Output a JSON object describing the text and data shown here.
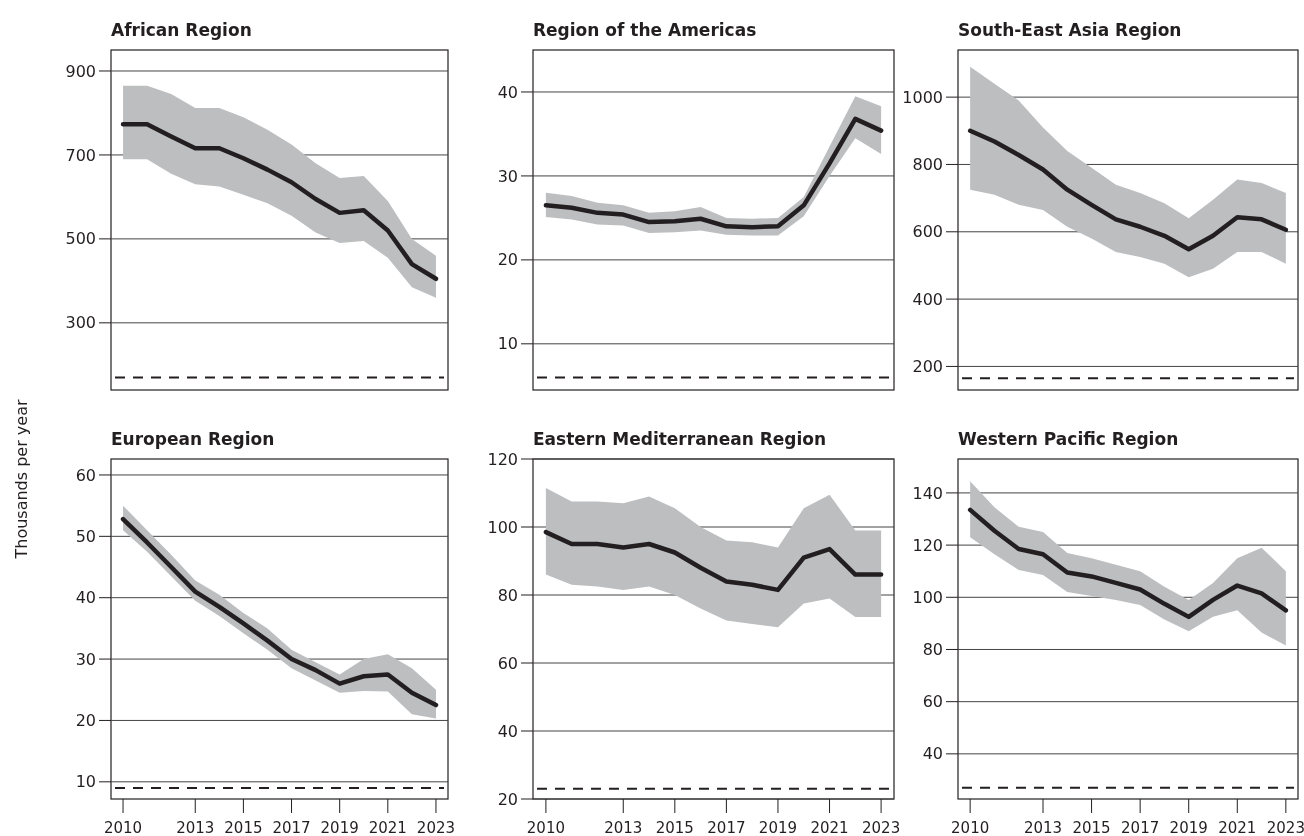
{
  "chart_data": [
    {
      "type": "line",
      "title": "African Region",
      "x": [
        2010,
        2011,
        2012,
        2013,
        2014,
        2015,
        2016,
        2017,
        2018,
        2019,
        2020,
        2021,
        2022,
        2023
      ],
      "xlim": [
        2009.5,
        2023.5
      ],
      "ylim": [
        140,
        950
      ],
      "yticks": [
        300,
        500,
        700,
        900
      ],
      "grid": "y",
      "tick_labels": "y",
      "series": [
        {
          "color": "#231f20",
          "values": [
            773,
            773,
            744,
            716,
            716,
            692,
            665,
            635,
            595,
            562,
            568,
            520,
            440,
            405
          ],
          "upper": [
            865,
            865,
            845,
            812,
            812,
            790,
            760,
            725,
            680,
            645,
            650,
            590,
            500,
            460
          ],
          "lower": [
            690,
            690,
            655,
            630,
            625,
            605,
            585,
            555,
            515,
            490,
            495,
            455,
            385,
            360
          ]
        }
      ],
      "ref_lines": [
        {
          "axis": "y",
          "value": 170,
          "line_style": "dashed",
          "color": "#231f20"
        }
      ]
    },
    {
      "type": "line",
      "title": "Region of the Americas",
      "x": [
        2010,
        2011,
        2012,
        2013,
        2014,
        2015,
        2016,
        2017,
        2018,
        2019,
        2020,
        2021,
        2022,
        2023
      ],
      "xlim": [
        2009.5,
        2023.5
      ],
      "ylim": [
        4.5,
        45
      ],
      "yticks": [
        10,
        20,
        30,
        40
      ],
      "grid": "y",
      "tick_labels": "y",
      "series": [
        {
          "color": "#231f20",
          "values": [
            26.5,
            26.2,
            25.6,
            25.4,
            24.5,
            24.6,
            24.9,
            24.0,
            23.9,
            24.0,
            26.5,
            31.5,
            36.8,
            35.4
          ],
          "upper": [
            28.0,
            27.6,
            26.8,
            26.5,
            25.6,
            25.8,
            26.3,
            25.0,
            24.9,
            25.0,
            27.5,
            33.5,
            39.5,
            38.3
          ],
          "lower": [
            25.1,
            24.8,
            24.2,
            24.1,
            23.2,
            23.3,
            23.5,
            23.0,
            22.9,
            22.9,
            25.2,
            30.0,
            34.5,
            32.6
          ]
        }
      ],
      "ref_lines": [
        {
          "axis": "y",
          "value": 6,
          "line_style": "dashed",
          "color": "#231f20"
        }
      ]
    },
    {
      "type": "line",
      "title": "South-East Asia Region",
      "x": [
        2010,
        2011,
        2012,
        2013,
        2014,
        2015,
        2016,
        2017,
        2018,
        2019,
        2020,
        2021,
        2022,
        2023
      ],
      "xlim": [
        2009.5,
        2023.5
      ],
      "ylim": [
        130,
        1140
      ],
      "yticks": [
        200,
        400,
        600,
        800,
        1000
      ],
      "grid": "y",
      "tick_labels": "y",
      "series": [
        {
          "color": "#231f20",
          "values": [
            900,
            868,
            828,
            785,
            725,
            680,
            637,
            615,
            588,
            548,
            588,
            643,
            637,
            606
          ],
          "upper": [
            1090,
            1040,
            990,
            910,
            840,
            790,
            740,
            715,
            685,
            640,
            695,
            755,
            745,
            715
          ],
          "lower": [
            725,
            710,
            680,
            665,
            615,
            580,
            540,
            525,
            505,
            465,
            490,
            540,
            540,
            505
          ]
        }
      ],
      "ref_lines": [
        {
          "axis": "y",
          "value": 165,
          "line_style": "dashed",
          "color": "#231f20"
        }
      ]
    },
    {
      "type": "line",
      "title": "European Region",
      "ylabel": "Thousands per year",
      "x": [
        2010,
        2011,
        2012,
        2013,
        2014,
        2015,
        2016,
        2017,
        2018,
        2019,
        2020,
        2021,
        2022,
        2023
      ],
      "xlim": [
        2009.5,
        2023.5
      ],
      "xticks": [
        2010,
        2013,
        2015,
        2017,
        2019,
        2021,
        2023
      ],
      "ylim": [
        7.2,
        62.6
      ],
      "yticks": [
        10,
        20,
        30,
        40,
        50,
        60
      ],
      "grid": "y",
      "series": [
        {
          "color": "#231f20",
          "values": [
            52.8,
            49,
            45,
            41,
            38.5,
            35.8,
            33,
            30,
            28.2,
            26,
            27.2,
            27.5,
            24.5,
            22.5
          ],
          "upper": [
            55,
            51,
            47,
            42.8,
            40.5,
            37.5,
            35,
            31.5,
            29.5,
            27.5,
            30,
            30.8,
            28.5,
            25
          ],
          "lower": [
            51,
            47.5,
            43.5,
            39.5,
            37,
            34.2,
            31.5,
            28.5,
            26.5,
            24.5,
            24.8,
            24.7,
            21,
            20.3
          ]
        }
      ],
      "ref_lines": [
        {
          "axis": "y",
          "value": 9,
          "line_style": "dashed",
          "color": "#231f20"
        }
      ]
    },
    {
      "type": "line",
      "title": "Eastern Mediterranean Region",
      "x": [
        2010,
        2011,
        2012,
        2013,
        2014,
        2015,
        2016,
        2017,
        2018,
        2019,
        2020,
        2021,
        2022,
        2023
      ],
      "xlim": [
        2009.5,
        2023.5
      ],
      "xticks": [
        2010,
        2013,
        2015,
        2017,
        2019,
        2021,
        2023
      ],
      "ylim": [
        20,
        120
      ],
      "yticks": [
        20,
        40,
        60,
        80,
        100,
        120
      ],
      "grid": "y",
      "series": [
        {
          "color": "#231f20",
          "values": [
            98.5,
            95,
            95,
            94,
            95,
            92.5,
            88,
            84,
            83,
            81.5,
            91,
            93.5,
            86,
            86
          ],
          "upper": [
            111.5,
            107.5,
            107.5,
            107,
            109,
            105.5,
            100,
            96,
            95.5,
            94,
            105.5,
            109.5,
            99,
            99
          ],
          "lower": [
            86,
            83,
            82.5,
            81.5,
            82.5,
            80,
            76,
            72.5,
            71.5,
            70.5,
            77.5,
            79,
            73.5,
            73.5
          ]
        }
      ],
      "ref_lines": [
        {
          "axis": "y",
          "value": 23,
          "line_style": "dashed",
          "color": "#231f20"
        }
      ]
    },
    {
      "type": "line",
      "title": "Western Pacific Region",
      "x": [
        2010,
        2011,
        2012,
        2013,
        2014,
        2015,
        2016,
        2017,
        2018,
        2019,
        2020,
        2021,
        2022,
        2023
      ],
      "xlim": [
        2009.5,
        2023.5
      ],
      "xticks": [
        2010,
        2013,
        2015,
        2017,
        2019,
        2021,
        2023
      ],
      "ylim": [
        22.7,
        153
      ],
      "yticks": [
        40,
        60,
        80,
        100,
        120,
        140
      ],
      "grid": "y",
      "series": [
        {
          "color": "#231f20",
          "values": [
            133.5,
            125.5,
            118.5,
            116.5,
            109.5,
            108,
            105.5,
            103,
            97.5,
            92.5,
            99,
            104.5,
            101.5,
            95
          ],
          "upper": [
            144.5,
            134.5,
            127,
            125,
            117,
            115,
            112.5,
            110,
            104,
            99,
            105.5,
            115,
            119,
            110
          ],
          "lower": [
            123,
            116.5,
            110.5,
            108.5,
            102,
            100.5,
            99,
            97,
            91.5,
            87,
            92.5,
            95,
            86.5,
            81.5
          ]
        }
      ],
      "ref_lines": [
        {
          "axis": "y",
          "value": 27,
          "line_style": "dashed",
          "color": "#231f20"
        }
      ]
    }
  ]
}
